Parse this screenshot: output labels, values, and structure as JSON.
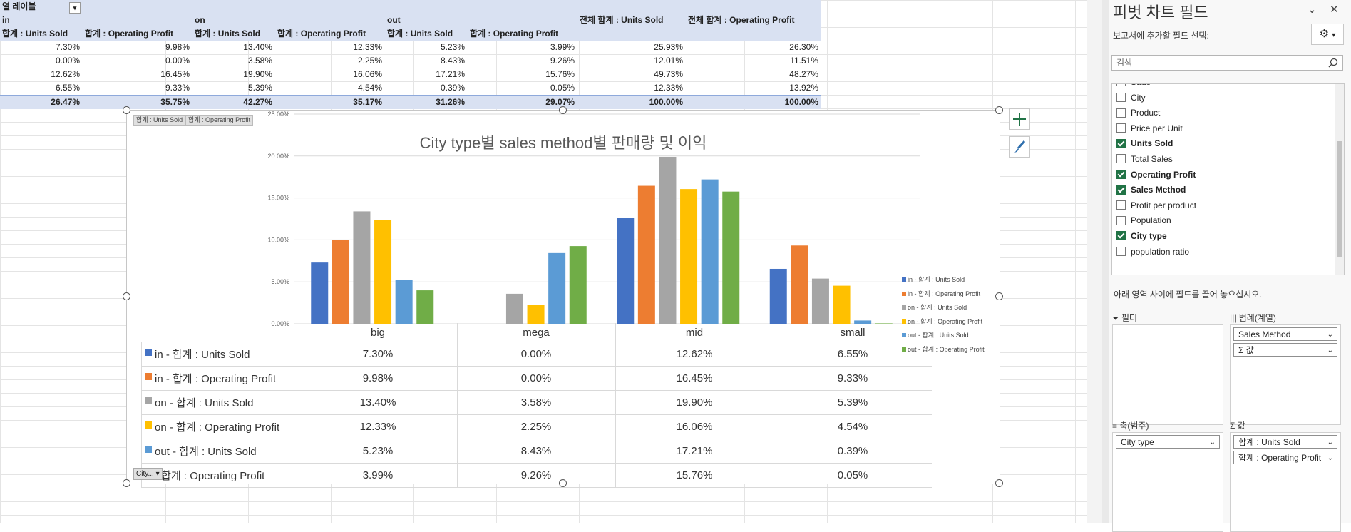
{
  "pivot": {
    "col_label_header": "열 레이블",
    "groups": [
      "in",
      "on",
      "out"
    ],
    "col_headers": [
      "합계 : Units Sold",
      "합계 : Operating Profit",
      "합계 : Units Sold",
      "합계 : Operating Profit",
      "합계 : Units Sold",
      "합계 : Operating Profit",
      "전체 합계 : Units Sold",
      "전체 합계 : Operating Profit"
    ],
    "rows": [
      [
        "7.30%",
        "9.98%",
        "13.40%",
        "12.33%",
        "5.23%",
        "3.99%",
        "25.93%",
        "26.30%"
      ],
      [
        "0.00%",
        "0.00%",
        "3.58%",
        "2.25%",
        "8.43%",
        "9.26%",
        "12.01%",
        "11.51%"
      ],
      [
        "12.62%",
        "16.45%",
        "19.90%",
        "16.06%",
        "17.21%",
        "15.76%",
        "49.73%",
        "48.27%"
      ],
      [
        "6.55%",
        "9.33%",
        "5.39%",
        "4.54%",
        "0.39%",
        "0.05%",
        "12.33%",
        "13.92%"
      ]
    ],
    "total": [
      "26.47%",
      "35.75%",
      "42.27%",
      "35.17%",
      "31.26%",
      "29.07%",
      "100.00%",
      "100.00%"
    ]
  },
  "chart_data": {
    "type": "bar",
    "title": "City type별 sales method별 판매량 및 이익",
    "categories": [
      "big",
      "mega",
      "mid",
      "small"
    ],
    "ylim": [
      0,
      25
    ],
    "yticks": [
      "0.00%",
      "5.00%",
      "10.00%",
      "15.00%",
      "20.00%",
      "25.00%"
    ],
    "legend_position": "right",
    "series": [
      {
        "name": "in - 합계 : Units Sold",
        "values": [
          7.3,
          0.0,
          12.62,
          6.55
        ],
        "color": "#4472c4"
      },
      {
        "name": "in - 합계 : Operating Profit",
        "values": [
          9.98,
          0.0,
          16.45,
          9.33
        ],
        "color": "#ed7d31"
      },
      {
        "name": "on - 합계 : Units Sold",
        "values": [
          13.4,
          3.58,
          19.9,
          5.39
        ],
        "color": "#a5a5a5"
      },
      {
        "name": "on - 합계 : Operating Profit",
        "values": [
          12.33,
          2.25,
          16.06,
          4.54
        ],
        "color": "#ffc000"
      },
      {
        "name": "out - 합계 : Units Sold",
        "values": [
          5.23,
          8.43,
          17.21,
          0.39
        ],
        "color": "#5b9bd5"
      },
      {
        "name": "out - 합계 : Operating Profit",
        "values": [
          3.99,
          9.26,
          15.76,
          0.05
        ],
        "color": "#70ad47"
      }
    ],
    "table_rows": [
      [
        "7.30%",
        "0.00%",
        "12.62%",
        "6.55%"
      ],
      [
        "9.98%",
        "0.00%",
        "16.45%",
        "9.33%"
      ],
      [
        "13.40%",
        "3.58%",
        "19.90%",
        "5.39%"
      ],
      [
        "12.33%",
        "2.25%",
        "16.06%",
        "4.54%"
      ],
      [
        "5.23%",
        "8.43%",
        "17.21%",
        "0.39%"
      ],
      [
        "3.99%",
        "9.26%",
        "15.76%",
        "0.05%"
      ]
    ],
    "table_labels": [
      "in - 합계 : Units Sold",
      "in - 합계 : Operating Profit",
      "on - 합계 : Units Sold",
      "on - 합계 : Operating Profit",
      "out - 합계 : Units Sold",
      "- 합계 : Operating Profit"
    ],
    "field_buttons": [
      "합계 : Units Sold",
      "합계 : Operating Profit"
    ],
    "axis_field_button": "City..."
  },
  "pane": {
    "title": "피벗 차트 필드",
    "subtitle": "보고서에 추가할 필드 선택:",
    "search_placeholder": "검색",
    "fields": [
      {
        "label": "State",
        "checked": false
      },
      {
        "label": "City",
        "checked": false
      },
      {
        "label": "Product",
        "checked": false
      },
      {
        "label": "Price per Unit",
        "checked": false
      },
      {
        "label": "Units Sold",
        "checked": true
      },
      {
        "label": "Total Sales",
        "checked": false
      },
      {
        "label": "Operating Profit",
        "checked": true
      },
      {
        "label": "Sales Method",
        "checked": true
      },
      {
        "label": "Profit per product",
        "checked": false
      },
      {
        "label": "Population",
        "checked": false
      },
      {
        "label": "City type",
        "checked": true
      },
      {
        "label": "population ratio",
        "checked": false
      }
    ],
    "hint": "아래 영역 사이에 필드를 끌어 놓으십시오.",
    "areas": {
      "filter": {
        "label": "필터",
        "items": []
      },
      "legend": {
        "label": "범례(계열)",
        "items": [
          "Sales Method",
          "Σ 값"
        ]
      },
      "axis": {
        "label": "축(범주)",
        "items": [
          "City type"
        ]
      },
      "values": {
        "label": "값",
        "items": [
          "합계 : Units Sold",
          "합계 : Operating Profit"
        ]
      }
    }
  }
}
